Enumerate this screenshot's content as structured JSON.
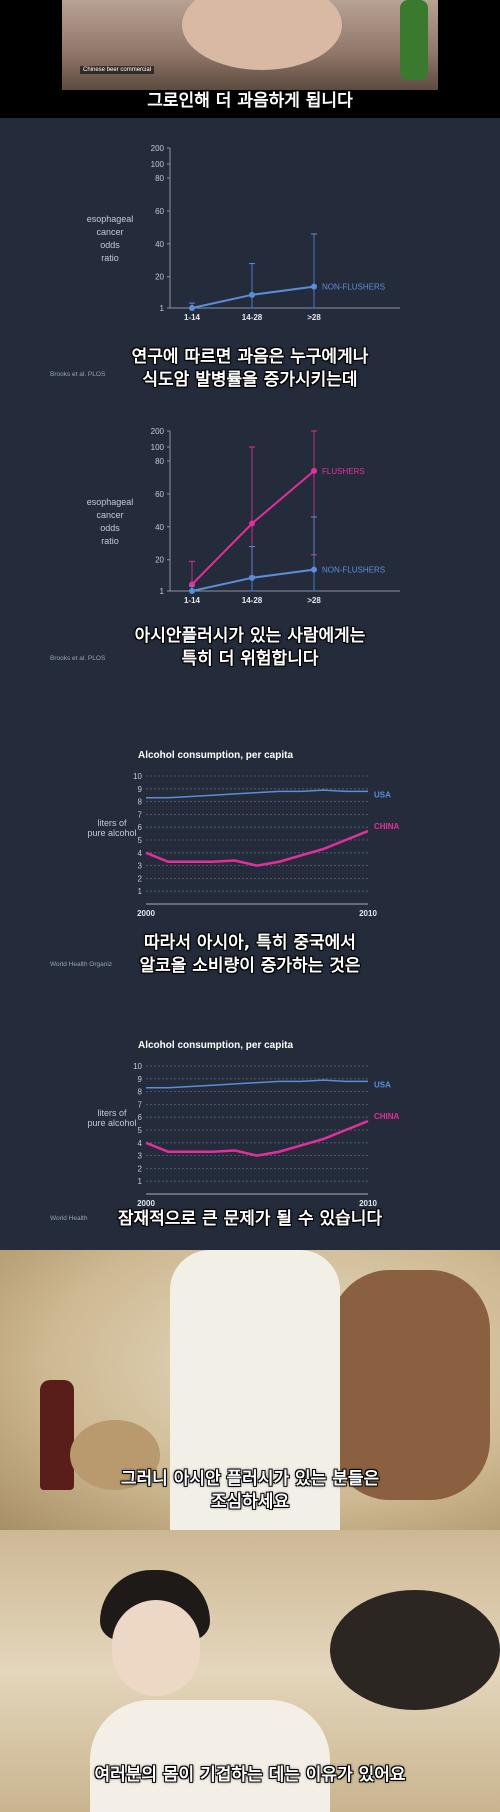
{
  "panels": {
    "p1": {
      "caption": "Chinese beer commercial",
      "subtitle": "그로인해 더 과음하게 됩니다"
    },
    "p2": {
      "subtitle_line1": "연구에 따르면 과음은 누구에게나",
      "subtitle_line2": "식도암 발병률을 증가시키는데",
      "source": "Brooks et al. PLOS"
    },
    "p3": {
      "subtitle_line1": "아시안플러시가 있는 사람에게는",
      "subtitle_line2": "특히 더 위험합니다",
      "source": "Brooks et al. PLOS"
    },
    "p4": {
      "subtitle_line1": "따라서 아시아, 특히 중국에서",
      "subtitle_line2": "알코올 소비량이 증가하는 것은",
      "source": "World Health Organiz"
    },
    "p5": {
      "subtitle": "잠재적으로 큰 문제가 될 수 있습니다",
      "source": "World Health"
    },
    "p6": {
      "subtitle_line1": "그러니 아시안 플러시가 있는 분들은",
      "subtitle_line2": "조심하세요"
    },
    "p7": {
      "subtitle": "여러분의 몸이 기겁하는 데는 이유가 있어요"
    }
  },
  "colors": {
    "blue": "#5b8ddb",
    "magenta": "#e22f9b",
    "bg": "#242c3b"
  },
  "chart_data": [
    {
      "type": "line",
      "ylabel": "esophageal cancer odds ratio",
      "yticks": [
        "1",
        "20",
        "40",
        "60",
        "80",
        "100",
        "200"
      ],
      "categories": [
        "1-14",
        "14-28",
        ">28"
      ],
      "scale": "broken-linear",
      "series": [
        {
          "name": "NON-FLUSHERS",
          "values": [
            1,
            9,
            14
          ],
          "err_low": [
            0,
            1,
            1
          ],
          "err_high": [
            4,
            28,
            46
          ]
        }
      ]
    },
    {
      "type": "line",
      "ylabel": "esophageal cancer odds ratio",
      "yticks": [
        "1",
        "20",
        "40",
        "60",
        "80",
        "100",
        "200"
      ],
      "categories": [
        "1-14",
        "14-28",
        ">28"
      ],
      "scale": "broken-linear",
      "series": [
        {
          "name": "FLUSHERS",
          "values": [
            5,
            42,
            74
          ],
          "err_low": [
            1,
            10,
            23
          ],
          "err_high": [
            19,
            100,
            200
          ]
        },
        {
          "name": "NON-FLUSHERS",
          "values": [
            1,
            9,
            14
          ],
          "err_low": [
            0,
            1,
            1
          ],
          "err_high": [
            4,
            28,
            46
          ]
        }
      ]
    },
    {
      "type": "line",
      "title": "Alcohol consumption, per capita",
      "ylabel": "liters of pure alcohol",
      "ylim": [
        0,
        10
      ],
      "xticks": [
        "2000",
        "2010"
      ],
      "x": [
        2000,
        2001,
        2002,
        2003,
        2004,
        2005,
        2006,
        2007,
        2008,
        2009,
        2010
      ],
      "series": [
        {
          "name": "USA",
          "values": [
            8.3,
            8.3,
            8.4,
            8.5,
            8.6,
            8.7,
            8.8,
            8.8,
            8.9,
            8.8,
            8.8
          ]
        },
        {
          "name": "CHINA",
          "values": [
            4.0,
            3.3,
            3.3,
            3.3,
            3.4,
            3.0,
            3.3,
            3.8,
            4.3,
            5.0,
            5.7
          ]
        }
      ]
    }
  ]
}
